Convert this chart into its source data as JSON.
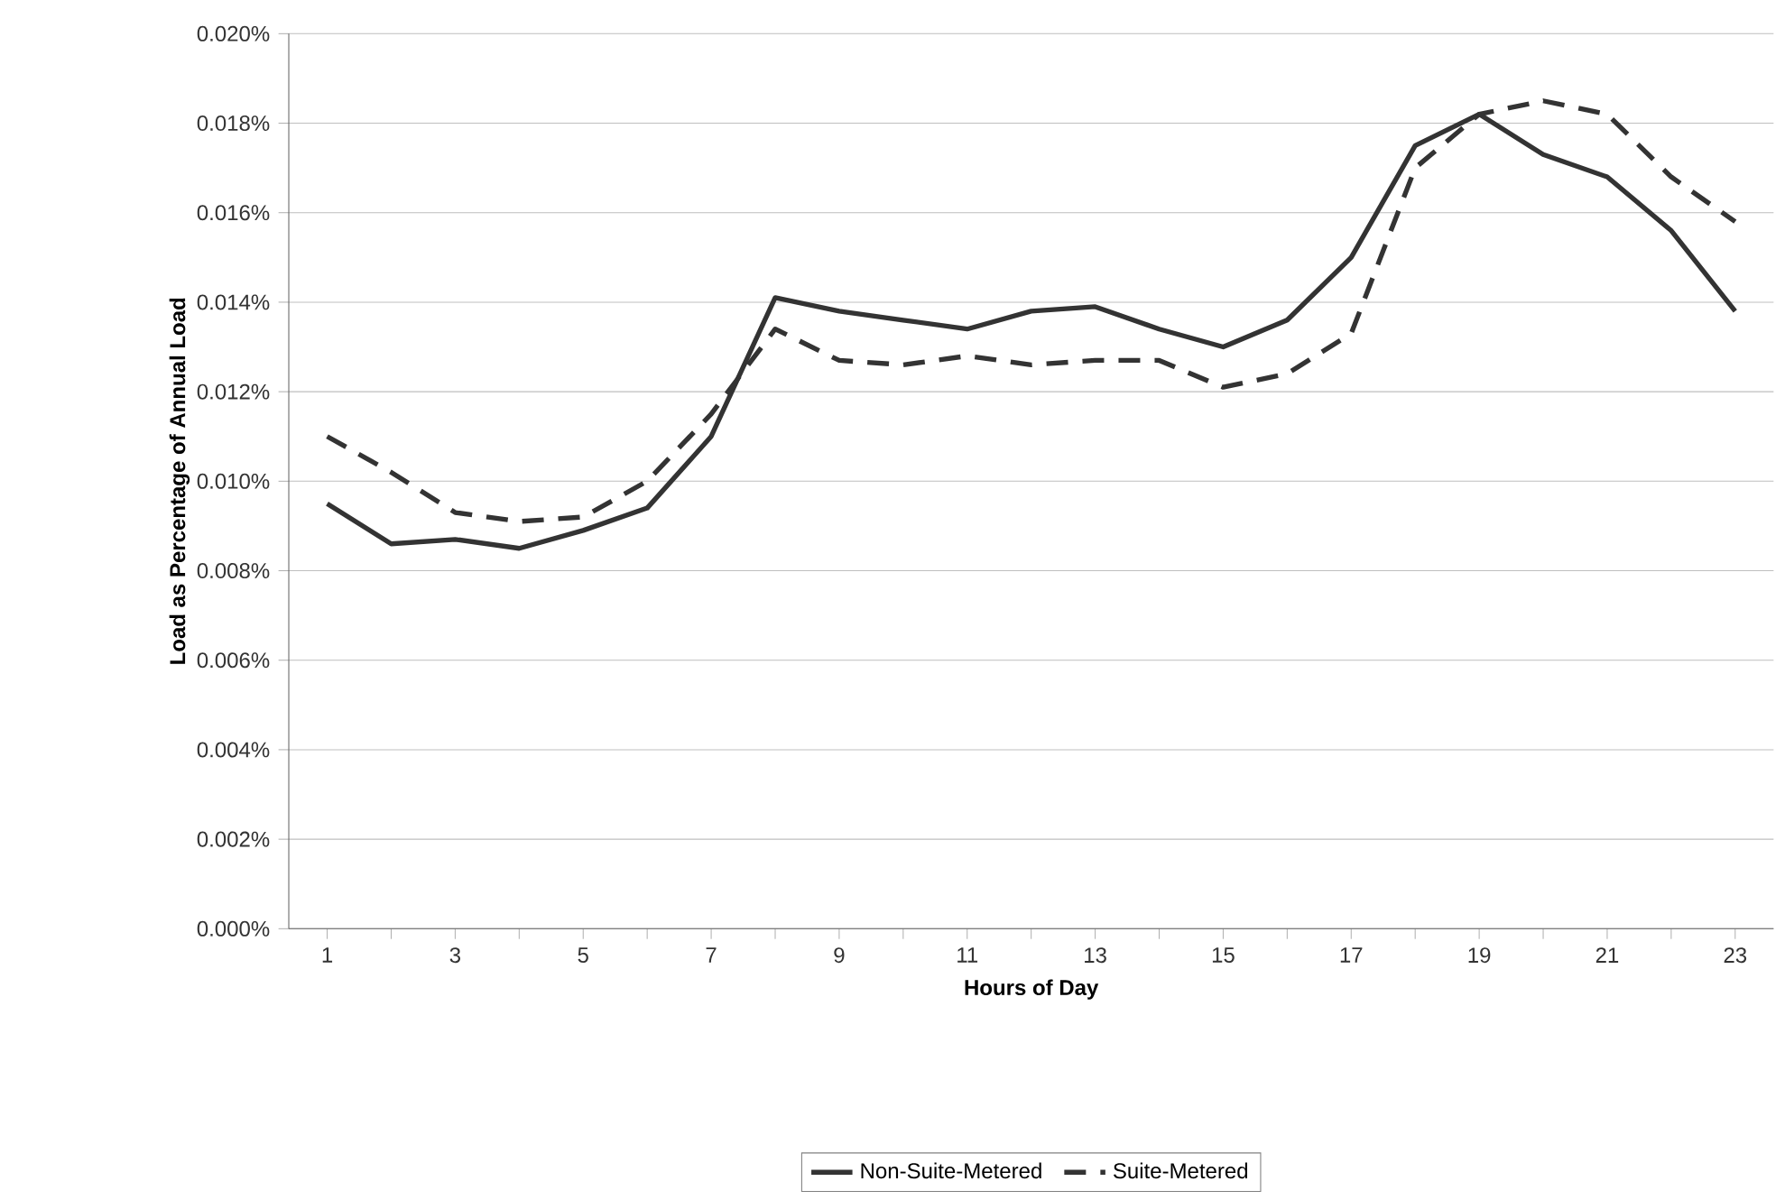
{
  "chart_data": {
    "type": "line",
    "xlabel": "Hours of Day",
    "ylabel": "Load as Percentage of Annual Load",
    "categories": [
      "1",
      null,
      "3",
      null,
      "5",
      null,
      "7",
      null,
      "9",
      null,
      "11",
      null,
      "13",
      null,
      "15",
      null,
      "17",
      null,
      "19",
      null,
      "21",
      null,
      "23"
    ],
    "series": [
      {
        "name": "Non-Suite-Metered",
        "color": "#333333",
        "line_style": "solid",
        "values": [
          0.0095,
          0.0086,
          0.0087,
          0.0085,
          0.0089,
          0.0094,
          0.011,
          0.0141,
          0.0138,
          0.0136,
          0.0134,
          0.0138,
          0.0139,
          0.0134,
          0.013,
          0.0136,
          0.015,
          0.0175,
          0.0182,
          0.0173,
          0.0168,
          0.0156,
          0.0138
        ]
      },
      {
        "name": "Suite-Metered",
        "color": "#333333",
        "line_style": "dashed",
        "values": [
          0.011,
          0.0102,
          0.0093,
          0.0091,
          0.0092,
          0.01,
          0.0115,
          0.0134,
          0.0127,
          0.0126,
          0.0128,
          0.0126,
          0.0127,
          0.0127,
          0.0121,
          0.0124,
          0.0133,
          0.017,
          0.0182,
          0.0185,
          0.0182,
          0.0168,
          0.0158
        ]
      }
    ],
    "ylim": [
      0,
      0.02
    ],
    "yticks": [
      {
        "value": 0,
        "label": "0.000%"
      },
      {
        "value": 0.002,
        "label": "0.002%"
      },
      {
        "value": 0.004,
        "label": "0.004%"
      },
      {
        "value": 0.006,
        "label": "0.006%"
      },
      {
        "value": 0.008,
        "label": "0.008%"
      },
      {
        "value": 0.01,
        "label": "0.010%"
      },
      {
        "value": 0.012,
        "label": "0.012%"
      },
      {
        "value": 0.014,
        "label": "0.014%"
      },
      {
        "value": 0.016,
        "label": "0.016%"
      },
      {
        "value": 0.018,
        "label": "0.018%"
      },
      {
        "value": 0.02,
        "label": "0.020%"
      }
    ],
    "grid": "y",
    "legend": "bottom",
    "marker": "none"
  }
}
